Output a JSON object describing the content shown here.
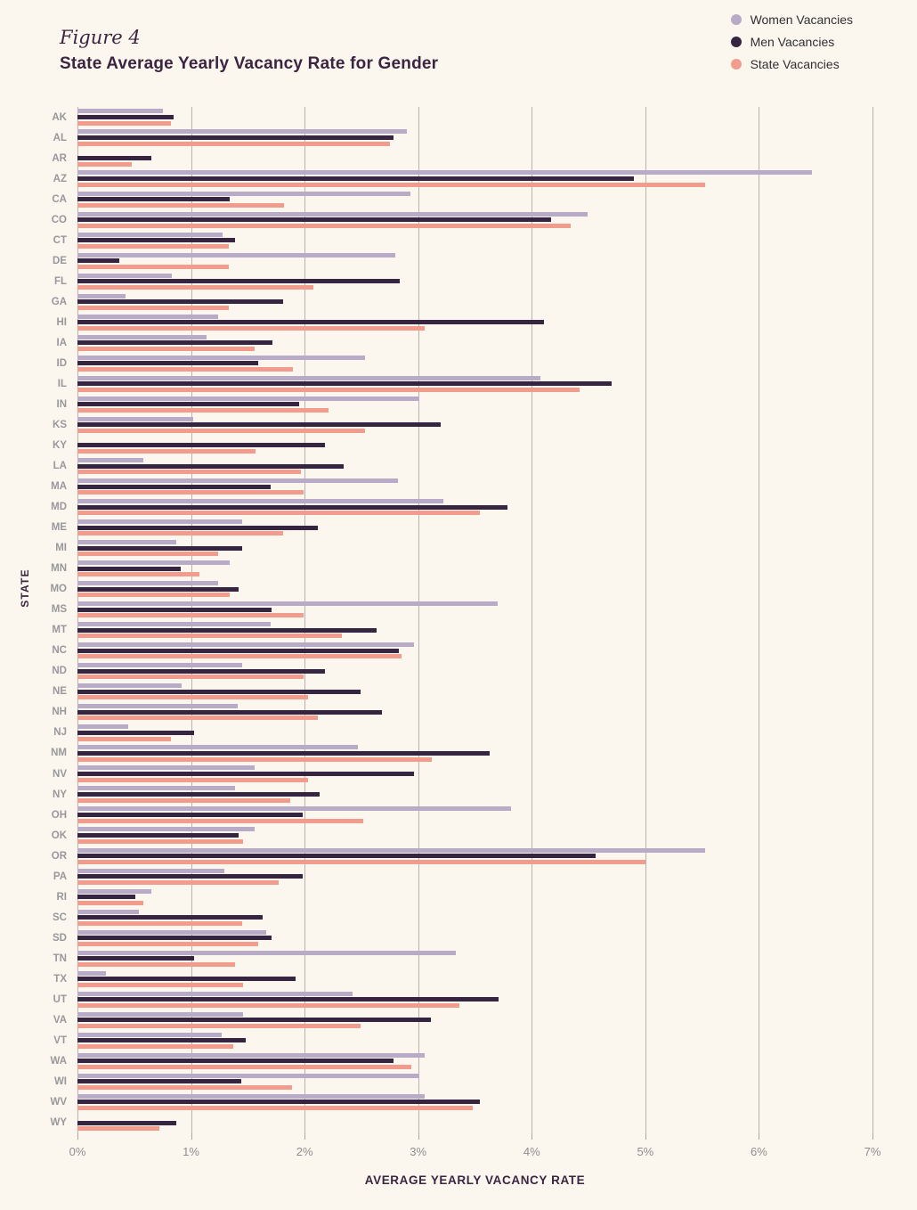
{
  "figure_label": "Figure 4",
  "title": "State Average Yearly Vacancy Rate for Gender",
  "x_axis_title": "AVERAGE YEARLY VACANCY RATE",
  "y_axis_title": "STATE",
  "colors": {
    "background": "#fcf7ee",
    "women": "#b7abc7",
    "men": "#352540",
    "state": "#f19c8d",
    "gridline": "#b8b4ad",
    "tick_text": "#8d8c91",
    "title_text": "#3b2541"
  },
  "legend": [
    {
      "label": "Women Vacancies",
      "color": "#b7abc7"
    },
    {
      "label": "Men Vacancies",
      "color": "#352540"
    },
    {
      "label": "State Vacancies",
      "color": "#f19c8d"
    }
  ],
  "chart_data": {
    "type": "bar",
    "orientation": "horizontal",
    "title": "State Average Yearly Vacancy Rate for Gender",
    "xlabel": "AVERAGE YEARLY VACANCY RATE",
    "ylabel": "STATE",
    "xlim": [
      0,
      7
    ],
    "x_tick_labels": [
      "0%",
      "1%",
      "2%",
      "3%",
      "4%",
      "5%",
      "6%",
      "7%"
    ],
    "grid": true,
    "legend_position": "top-right",
    "categories": [
      "AK",
      "AL",
      "AR",
      "AZ",
      "CA",
      "CO",
      "CT",
      "DE",
      "FL",
      "GA",
      "HI",
      "IA",
      "ID",
      "IL",
      "IN",
      "KS",
      "KY",
      "LA",
      "MA",
      "MD",
      "ME",
      "MI",
      "MN",
      "MO",
      "MS",
      "MT",
      "NC",
      "ND",
      "NE",
      "NH",
      "NJ",
      "NM",
      "NV",
      "NY",
      "OH",
      "OK",
      "OR",
      "PA",
      "RI",
      "SC",
      "SD",
      "TN",
      "TX",
      "UT",
      "VA",
      "VT",
      "WA",
      "WI",
      "WV",
      "WY"
    ],
    "series": [
      {
        "name": "Women Vacancies",
        "color": "#b7abc7",
        "values": [
          0.75,
          2.9,
          0,
          6.47,
          2.93,
          4.49,
          1.28,
          2.8,
          0.83,
          0.42,
          1.24,
          1.14,
          2.53,
          4.08,
          3.01,
          1.02,
          0,
          0.58,
          2.82,
          3.22,
          1.45,
          0.87,
          1.34,
          1.24,
          3.7,
          1.7,
          2.96,
          1.45,
          0.92,
          1.41,
          0.45,
          2.47,
          1.56,
          1.39,
          3.82,
          1.56,
          5.53,
          1.29,
          0.65,
          0.54,
          1.66,
          3.33,
          0.25,
          2.42,
          1.46,
          1.27,
          3.06,
          3.01,
          3.06,
          0
        ]
      },
      {
        "name": "Men Vacancies",
        "color": "#352540",
        "values": [
          0.85,
          2.78,
          0.65,
          4.9,
          1.34,
          4.17,
          1.39,
          0.37,
          2.84,
          1.81,
          4.11,
          1.72,
          1.59,
          4.7,
          1.95,
          3.2,
          2.18,
          2.34,
          1.7,
          3.79,
          2.12,
          1.45,
          0.91,
          1.42,
          1.71,
          2.63,
          2.83,
          2.18,
          2.49,
          2.68,
          1.03,
          3.63,
          2.96,
          2.13,
          1.98,
          1.42,
          4.56,
          1.98,
          0.51,
          1.63,
          1.71,
          1.03,
          1.92,
          3.71,
          3.11,
          1.48,
          2.78,
          1.44,
          3.54,
          0.87
        ]
      },
      {
        "name": "State Vacancies",
        "color": "#f19c8d",
        "values": [
          0.82,
          2.75,
          0.48,
          5.53,
          1.82,
          4.34,
          1.33,
          1.33,
          2.08,
          1.33,
          3.06,
          1.56,
          1.9,
          4.42,
          2.21,
          2.53,
          1.57,
          1.97,
          1.99,
          3.54,
          1.81,
          1.24,
          1.07,
          1.34,
          1.99,
          2.33,
          2.85,
          1.99,
          2.03,
          2.12,
          0.82,
          3.12,
          2.03,
          1.87,
          2.52,
          1.46,
          5.0,
          1.77,
          0.58,
          1.45,
          1.59,
          1.39,
          1.46,
          3.36,
          2.49,
          1.37,
          2.94,
          1.89,
          3.48,
          0.72
        ]
      }
    ]
  }
}
